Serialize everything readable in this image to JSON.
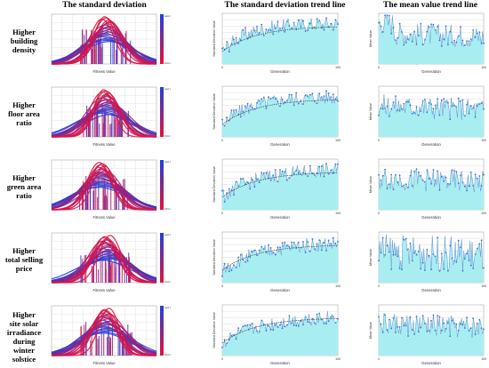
{
  "headers": {
    "col1": "The standard deviation",
    "col2": "The standard deviation trend line",
    "col3": "The  mean value  trend line"
  },
  "legend": {
    "top": "Last Gen",
    "bottom": "First Gen"
  },
  "axes": {
    "fitness_xlabel": "Fitness Value",
    "generation_xlabel": "Generation",
    "std_ylabel": "Standard Deviation Value",
    "mean_ylabel": "Mean Value",
    "gen_ticks": [
      "0",
      "100"
    ]
  },
  "rows": [
    {
      "label": [
        "Higher",
        "building",
        "density"
      ]
    },
    {
      "label": [
        "Higher",
        "floor area",
        "ratio"
      ]
    },
    {
      "label": [
        "Higher",
        "green area",
        "ratio"
      ]
    },
    {
      "label": [
        "Higher",
        "total selling",
        "price"
      ]
    },
    {
      "label": [
        "Higher",
        "site solar",
        "irradiance",
        "during winter",
        "solstice"
      ]
    }
  ],
  "colors": {
    "gen_first": "#e8103a",
    "gen_last": "#1f3fe0",
    "area_fill": "#a8eef0",
    "trend_line": "#2a2a2a",
    "point": "#3a6fd8"
  },
  "chart_data": [
    {
      "type": "line",
      "title": "",
      "xlabel": "Fitness Value",
      "ylabel": "",
      "note": "overlaid normal distribution curves per generation",
      "generations": [
        1,
        100
      ]
    },
    {
      "type": "area",
      "title": "",
      "xlabel": "Generation",
      "ylabel": "Standard Deviation Value",
      "x": [
        0,
        10,
        20,
        30,
        40,
        50,
        60,
        70,
        80,
        90,
        100
      ],
      "values": [
        0.45,
        0.58,
        0.64,
        0.7,
        0.69,
        0.73,
        0.75,
        0.74,
        0.78,
        0.76,
        0.77
      ]
    },
    {
      "type": "area",
      "title": "",
      "xlabel": "Generation",
      "ylabel": "Mean Value",
      "x": [
        0,
        10,
        20,
        30,
        40,
        50,
        60,
        70,
        80,
        90,
        100
      ],
      "values": [
        0.62,
        0.58,
        0.6,
        0.54,
        0.57,
        0.55,
        0.58,
        0.52,
        0.56,
        0.53,
        0.55
      ]
    }
  ]
}
